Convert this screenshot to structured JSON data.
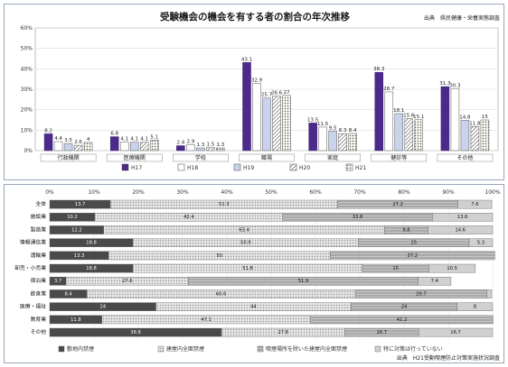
{
  "top_chart": {
    "title": "受験機会の機会を有する者の割合の年次推移",
    "source": "出典　県民健康・栄養実態調査",
    "chart_data": {
      "type": "bar",
      "categories": [
        "行政機関",
        "医療機関",
        "学校",
        "職場",
        "家庭",
        "健診等",
        "その他"
      ],
      "ylim": [
        0,
        60
      ],
      "yticks": [
        "0%",
        "10%",
        "20%",
        "30%",
        "40%",
        "50%",
        "60%"
      ],
      "series": [
        {
          "name": "H17",
          "values": [
            8.2,
            6.8,
            2.4,
            43.1,
            13.5,
            38.3,
            31.3
          ]
        },
        {
          "name": "H18",
          "values": [
            4.4,
            4.1,
            2.9,
            32.9,
            11.5,
            28.7,
            30.3
          ]
        },
        {
          "name": "H19",
          "values": [
            3.5,
            4.1,
            1.3,
            25.7,
            9.5,
            18.1,
            14.8
          ]
        },
        {
          "name": "H20",
          "values": [
            2.6,
            4.1,
            1.5,
            26.6,
            8.3,
            15.6,
            11.8
          ]
        },
        {
          "name": "H21",
          "values": [
            4.0,
            5.1,
            1.3,
            27.0,
            8.4,
            15.1,
            15.0
          ]
        }
      ]
    },
    "legend": [
      "H17",
      "H18",
      "H19",
      "H20",
      "H21"
    ],
    "colors": [
      "#4b2a8c",
      "#ffffff",
      "#c9d4ec",
      "#ffffff",
      "#f3f3ea"
    ]
  },
  "bottom_chart": {
    "source": "出典　H21受動喫煙防止対策実施状況調査",
    "chart_data": {
      "type": "bar",
      "stacked": true,
      "orientation": "horizontal",
      "xticks": [
        "0%",
        "10%",
        "20%",
        "30%",
        "40%",
        "50%",
        "60%",
        "70%",
        "80%",
        "90%",
        "100%"
      ],
      "categories": [
        "全体",
        "施設業",
        "製造業",
        "情報通信業",
        "運輸業",
        "卸売・小売業",
        "宿泊業",
        "飲食業",
        "医療・福祉",
        "教育業",
        "その他"
      ],
      "series": [
        {
          "name": "敷地内禁煙",
          "values": [
            13.7,
            10.2,
            12.2,
            18.8,
            13.3,
            18.8,
            3.7,
            8.4,
            24.0,
            11.8,
            38.8
          ]
        },
        {
          "name": "建屋内全面禁煙",
          "values": [
            51.3,
            42.4,
            63.4,
            50.9,
            50.0,
            51.8,
            27.6,
            60.6,
            44.0,
            47.1,
            27.8
          ]
        },
        {
          "name": "喫煙場所を除いた建屋内全面禁煙",
          "values": [
            27.2,
            33.8,
            9.8,
            25.0,
            37.2,
            15.0,
            51.9,
            29.7,
            24.0,
            41.2,
            16.7
          ]
        },
        {
          "name": "特に対策は行っていない",
          "values": [
            7.6,
            13.6,
            14.6,
            5.3,
            0.0,
            10.5,
            7.4,
            1.1,
            8.0,
            0.0,
            16.7
          ]
        }
      ]
    },
    "legend": [
      "敷地内禁煙",
      "建屋内全面禁煙",
      "喫煙場所を除いた建屋内全面禁煙",
      "特に対策は行っていない"
    ],
    "colors": [
      "#4a4a4a",
      "#d8d8d8",
      "#7a7a7a",
      "#bdbdbd"
    ]
  }
}
